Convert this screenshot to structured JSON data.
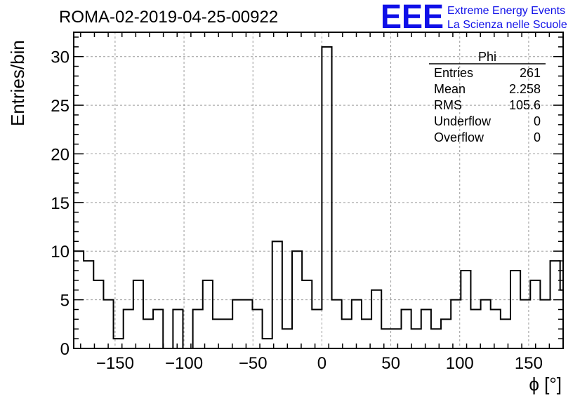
{
  "title": "ROMA-02-2019-04-25-00922",
  "logo": {
    "mark": "EEE",
    "line1": "Extreme Energy Events",
    "line2": "La Scienza nelle Scuole",
    "color": "#1010e8"
  },
  "stats": {
    "name": "Phi",
    "rows": [
      {
        "label": "Entries",
        "value": "261"
      },
      {
        "label": "Mean",
        "value": "2.258"
      },
      {
        "label": "RMS",
        "value": "105.6"
      },
      {
        "label": "Underflow",
        "value": "0"
      },
      {
        "label": "Overflow",
        "value": "0"
      }
    ]
  },
  "chart_data": {
    "type": "bar",
    "histogram": true,
    "title": "ROMA-02-2019-04-25-00922",
    "xlabel": "ϕ [°]",
    "ylabel": "Entries/bin",
    "xlim": [
      -180,
      175
    ],
    "ylim": [
      0,
      32.5
    ],
    "bin_width": 7.2,
    "x_start": -180,
    "values": [
      10,
      9,
      7,
      5,
      1,
      4,
      7,
      3,
      4,
      0,
      4,
      0,
      4,
      7,
      3,
      3,
      5,
      5,
      4,
      1,
      11,
      2,
      10,
      7,
      4,
      31,
      5,
      3,
      5,
      3,
      6,
      2,
      2,
      4,
      2,
      4,
      2,
      3,
      5,
      8,
      4,
      5,
      4,
      3,
      8,
      5,
      7,
      5,
      9,
      6
    ],
    "xticks": [
      -150,
      -100,
      -50,
      0,
      50,
      100,
      150
    ],
    "yticks": [
      0,
      5,
      10,
      15,
      20,
      25,
      30
    ],
    "grid": true,
    "line_color": "#000000"
  }
}
